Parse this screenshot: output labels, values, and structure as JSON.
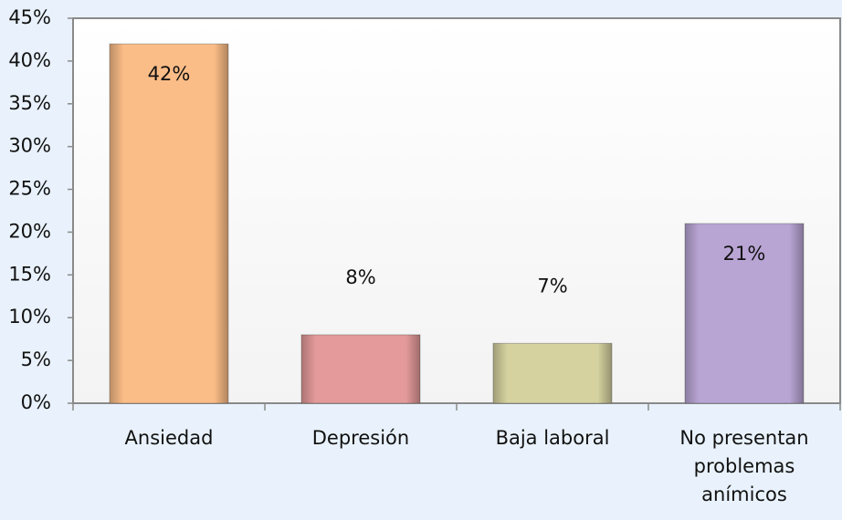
{
  "chart_data": {
    "type": "bar",
    "categories": [
      "Ansiedad",
      "Depresión",
      "Baja laboral",
      "No presentan problemas anímicos"
    ],
    "values": [
      42,
      8,
      7,
      21
    ],
    "value_labels": [
      "42%",
      "8%",
      "7%",
      "21%"
    ],
    "colors": [
      "#fbbd87",
      "#e49a9a",
      "#d5d2a0",
      "#b9a5d4"
    ],
    "ylim": [
      0,
      45
    ],
    "yticks": [
      {
        "value": 0,
        "label": "0%"
      },
      {
        "value": 5,
        "label": "5%"
      },
      {
        "value": 10,
        "label": "10%"
      },
      {
        "value": 15,
        "label": "15%"
      },
      {
        "value": 20,
        "label": "20%"
      },
      {
        "value": 25,
        "label": "25%"
      },
      {
        "value": 30,
        "label": "30%"
      },
      {
        "value": 35,
        "label": "35%"
      },
      {
        "value": 40,
        "label": "40%"
      },
      {
        "value": 45,
        "label": "45%"
      }
    ],
    "grid": false
  }
}
